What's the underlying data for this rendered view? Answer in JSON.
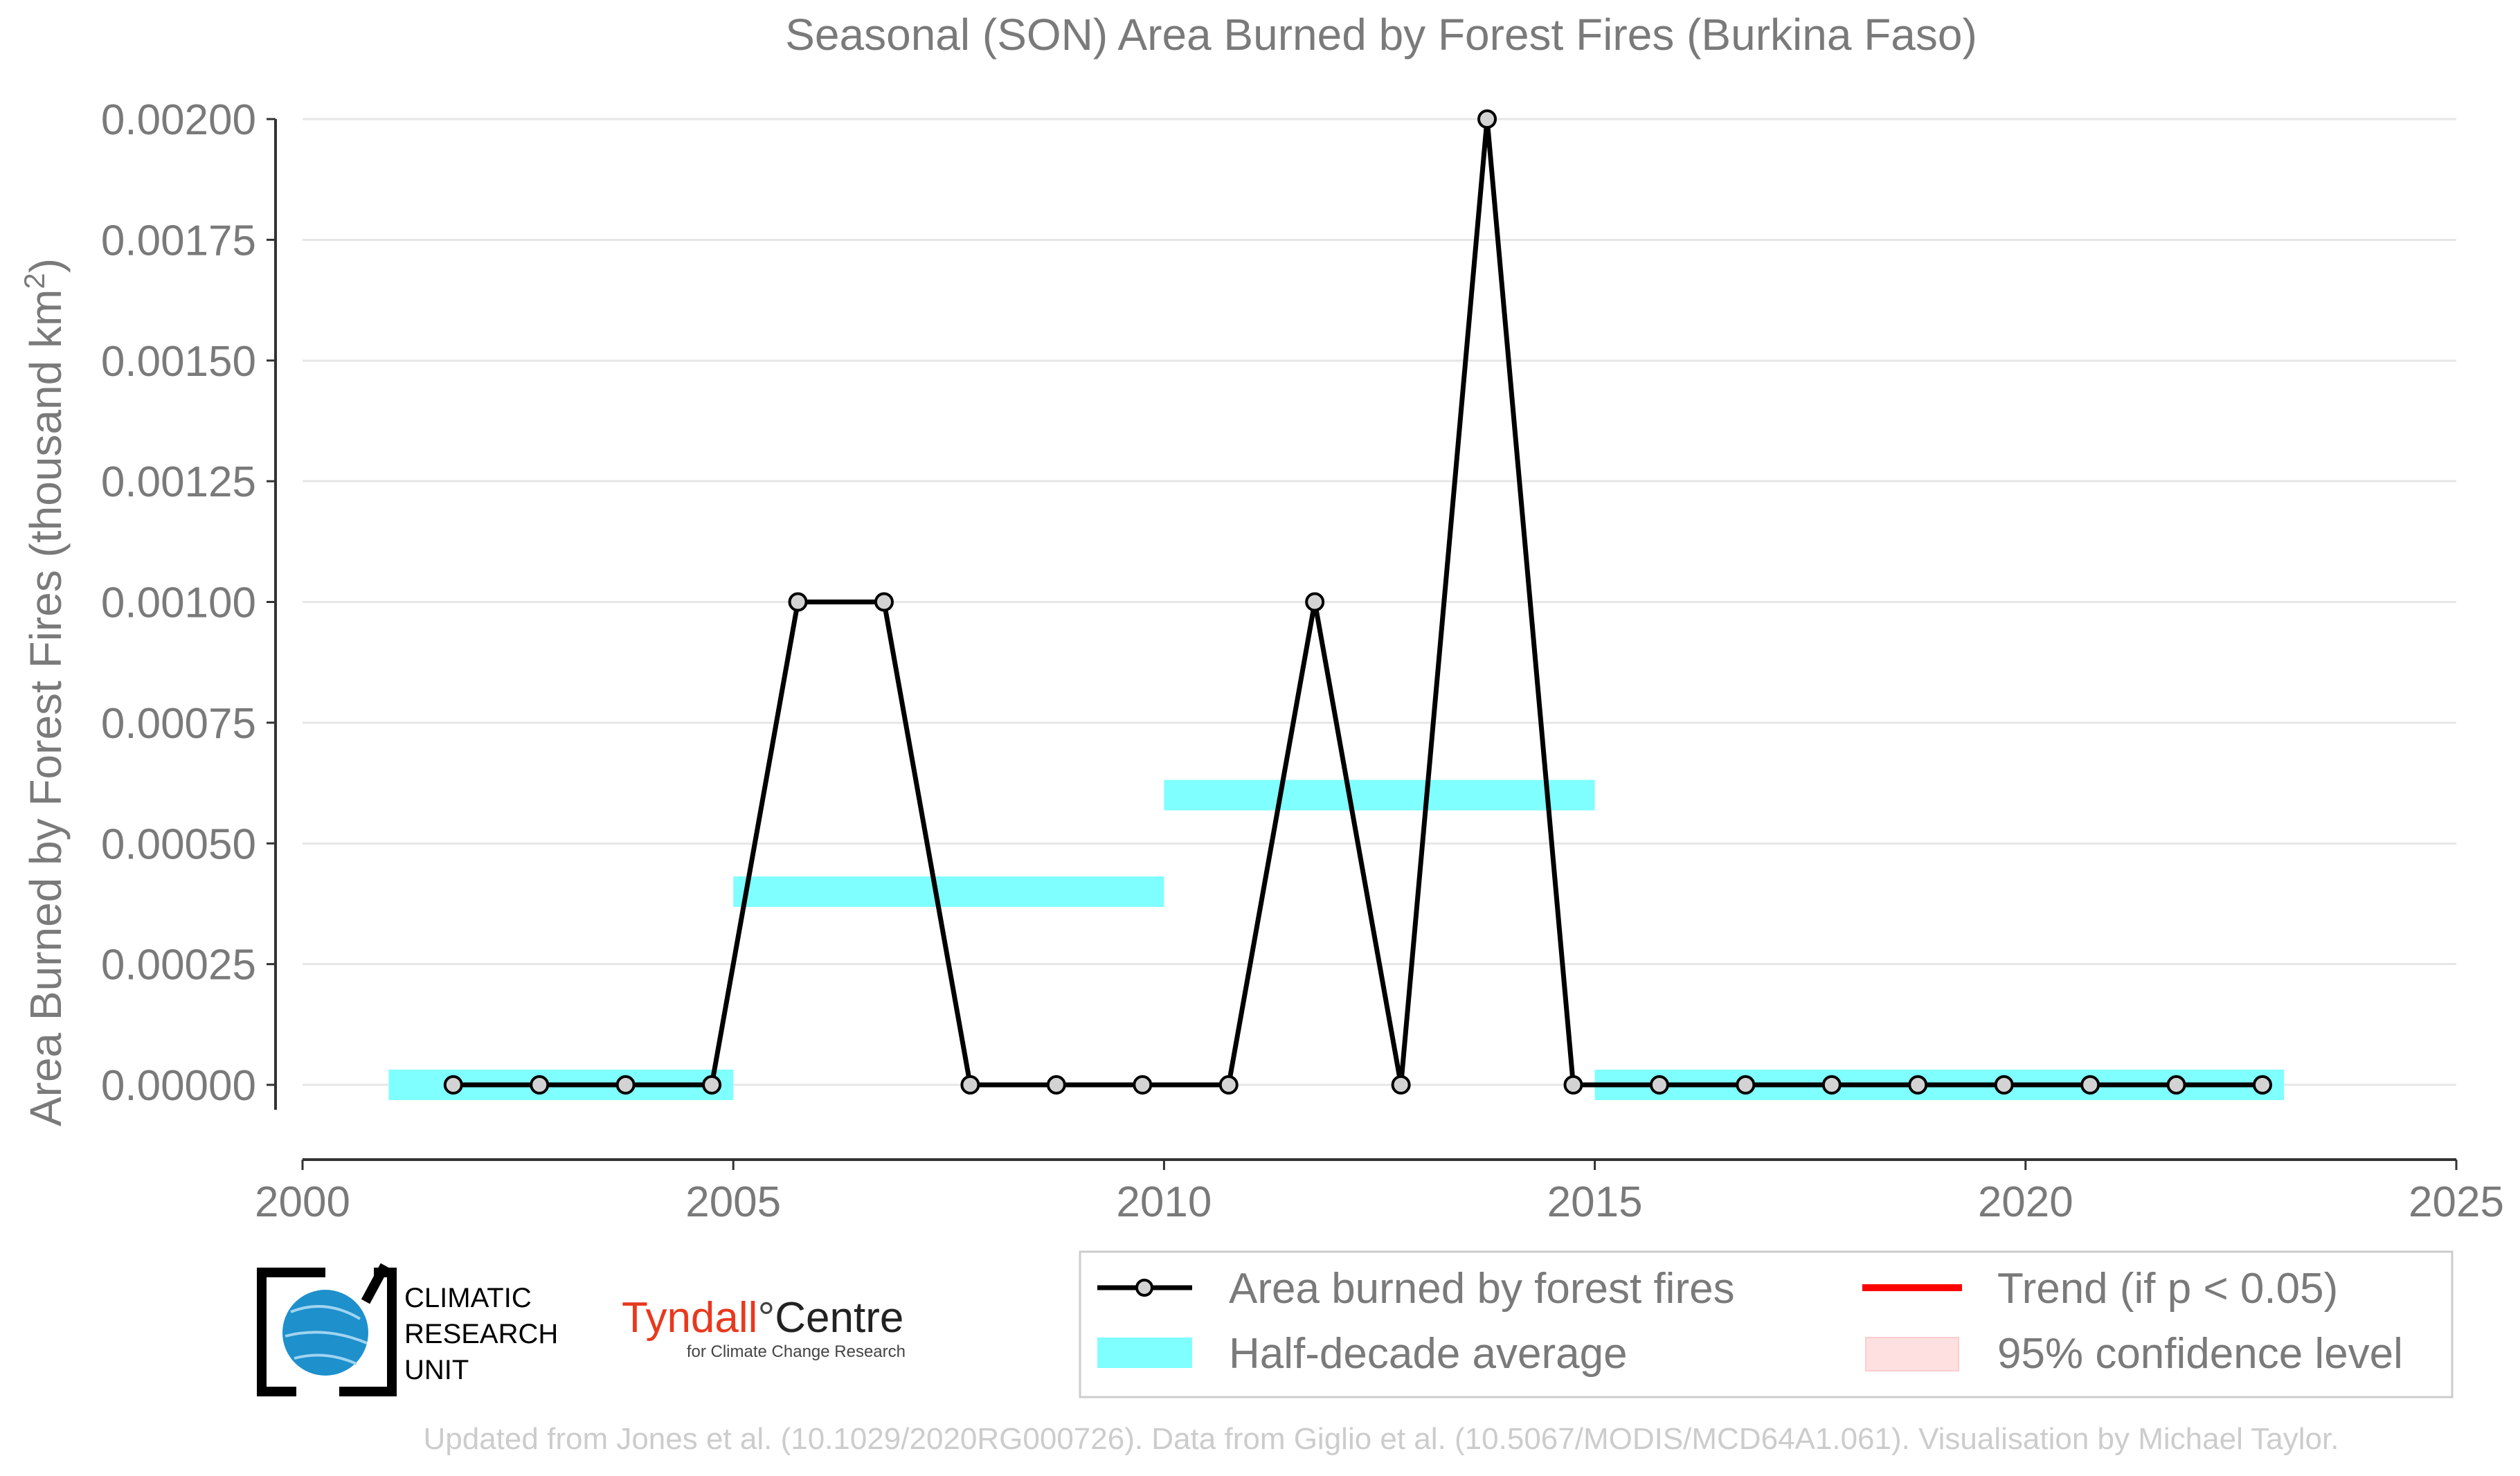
{
  "chart_data": {
    "type": "line",
    "title": "Seasonal (SON) Area Burned by Forest Fires (Burkina Faso)",
    "xlabel": "",
    "ylabel": "Area Burned by Forest Fires (thousand km²)",
    "ylabel_main": "Area Burned by Forest Fires (thousand km",
    "ylabel_sup": "2",
    "ylabel_end": ")",
    "xlim": [
      2000,
      2025
    ],
    "ylim": [
      -0.00016,
      0.0021
    ],
    "x_ticks": [
      2000,
      2005,
      2010,
      2015,
      2020,
      2025
    ],
    "x_tick_labels": [
      "2000",
      "2005",
      "2010",
      "2015",
      "2020",
      "2025"
    ],
    "y_ticks": [
      0,
      0.00025,
      0.0005,
      0.00075,
      0.001,
      0.00125,
      0.0015,
      0.00175,
      0.002
    ],
    "y_tick_labels": [
      "0.00000",
      "0.00025",
      "0.00050",
      "0.00075",
      "0.00100",
      "0.00125",
      "0.00150",
      "0.00175",
      "0.00200"
    ],
    "grid": true,
    "legend_position": "bottom-right",
    "series": [
      {
        "name": "Area burned by forest fires",
        "color": "#000000",
        "marker_fill": "#d3d3d3",
        "x": [
          2001.75,
          2002.75,
          2003.75,
          2004.75,
          2005.75,
          2006.75,
          2007.75,
          2008.75,
          2009.75,
          2010.75,
          2011.75,
          2012.75,
          2013.75,
          2014.75,
          2015.75,
          2016.75,
          2017.75,
          2018.75,
          2019.75,
          2020.75,
          2021.75,
          2022.75
        ],
        "values": [
          0,
          0,
          0,
          0,
          0.001,
          0.001,
          0,
          0,
          0,
          0,
          0.001,
          0,
          0.002,
          0,
          0,
          0,
          0,
          0,
          0,
          0,
          0,
          0
        ]
      }
    ],
    "half_decade_average": {
      "name": "Half-decade average",
      "color": "#7fffff",
      "segments": [
        {
          "x0": 2001,
          "x1": 2005,
          "value": 0
        },
        {
          "x0": 2005,
          "x1": 2010,
          "value": 0.0004
        },
        {
          "x0": 2010,
          "x1": 2015,
          "value": 0.0006
        },
        {
          "x0": 2015,
          "x1": 2023,
          "value": 0
        }
      ]
    },
    "legend": [
      {
        "label": "Area burned by forest fires",
        "kind": "line-marker",
        "color": "#000000"
      },
      {
        "label": "Trend (if p < 0.05)",
        "kind": "line",
        "color": "#ff0000"
      },
      {
        "label": "Half-decade average",
        "kind": "band",
        "color": "#7fffff"
      },
      {
        "label": "95% confidence level",
        "kind": "band",
        "color": "#ffe0e0"
      }
    ]
  },
  "logos": {
    "cru_line1": "CLIMATIC",
    "cru_line2": "RESEARCH",
    "cru_line3": "UNIT",
    "tyndall_main": "Tyndall",
    "tyndall_degree": "°",
    "tyndall_centre": "Centre",
    "tyndall_sub": "for Climate Change Research"
  },
  "footer": "Updated from Jones et al. (10.1029/2020RG000726). Data from Giglio et al. (10.5067/MODIS/MCD64A1.061). Visualisation by Michael Taylor."
}
